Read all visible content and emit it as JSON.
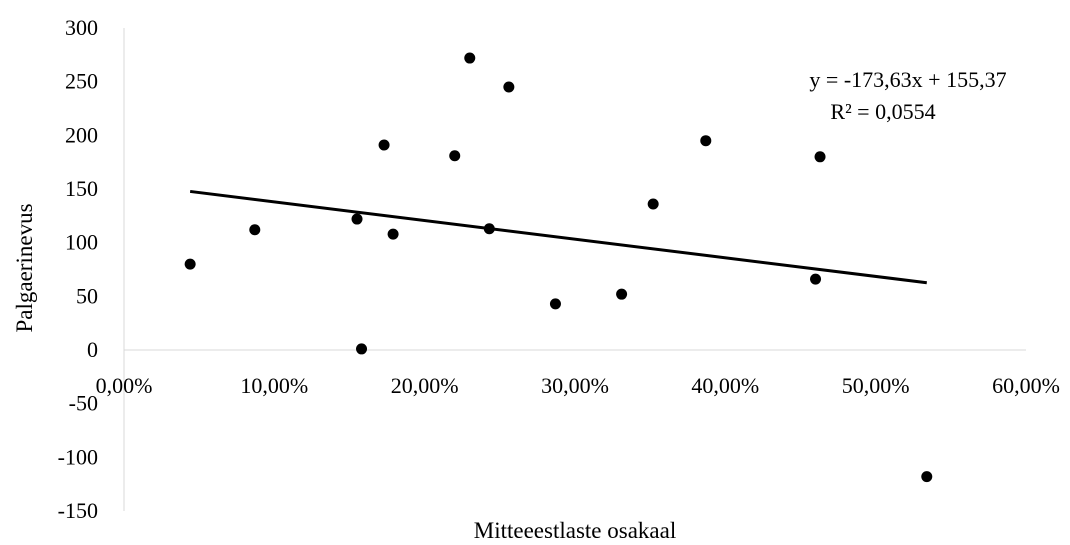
{
  "chart_data": {
    "type": "scatter",
    "title": "",
    "xlabel": "Mitteeestlaste osakaal",
    "ylabel": "Palgaerinevus",
    "xlim": [
      0,
      0.6
    ],
    "ylim": [
      -150,
      300
    ],
    "x_ticks": [
      0,
      0.1,
      0.2,
      0.3,
      0.4,
      0.5,
      0.6
    ],
    "x_tick_labels": [
      "0,00%",
      "10,00%",
      "20,00%",
      "30,00%",
      "40,00%",
      "50,00%",
      "60,00%"
    ],
    "y_ticks": [
      300,
      250,
      200,
      150,
      100,
      50,
      0,
      -50,
      -100,
      -150
    ],
    "y_tick_labels": [
      "300",
      "250",
      "200",
      "150",
      "100",
      "50",
      "0",
      "-50",
      "-100",
      "-150"
    ],
    "grid": false,
    "legend": false,
    "marker_color": "#000000",
    "series": [
      {
        "points": [
          [
            0.044,
            80
          ],
          [
            0.087,
            112
          ],
          [
            0.155,
            122
          ],
          [
            0.158,
            1
          ],
          [
            0.173,
            191
          ],
          [
            0.179,
            108
          ],
          [
            0.22,
            181
          ],
          [
            0.23,
            272
          ],
          [
            0.243,
            113
          ],
          [
            0.256,
            245
          ],
          [
            0.287,
            43
          ],
          [
            0.331,
            52
          ],
          [
            0.352,
            136
          ],
          [
            0.387,
            195
          ],
          [
            0.46,
            66
          ],
          [
            0.463,
            180
          ],
          [
            0.534,
            -118
          ]
        ]
      }
    ],
    "trendline": {
      "type": "linear",
      "slope": -173.63,
      "intercept": 155.37,
      "x_range": [
        0.044,
        0.534
      ],
      "equation": "y = -173,63x + 155,37",
      "r_squared": "R² = 0,0554"
    }
  }
}
